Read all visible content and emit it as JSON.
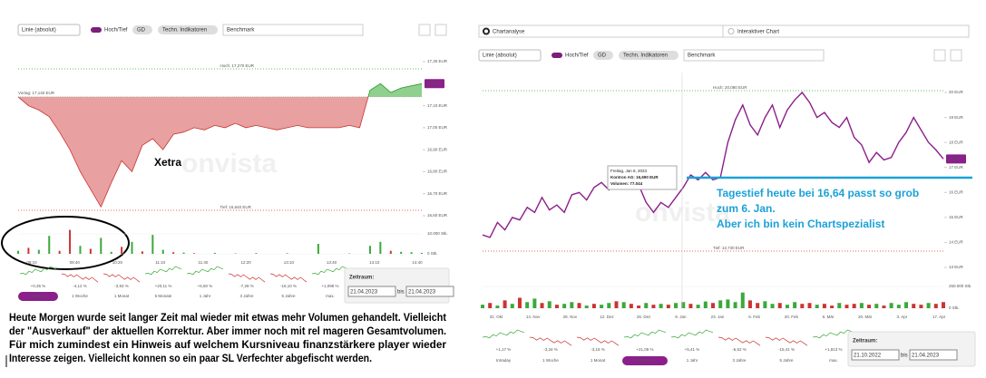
{
  "left": {
    "controls": {
      "line_type": "Linie (absolut)",
      "high_low": "Hoch/Tief",
      "gd": "GD",
      "indicators": "Techn. Indikatoren",
      "benchmark": "Benchmark"
    },
    "high_label": "Hoch: 17,270 EUR",
    "prev_label": "Vortag: 17,140 EUR",
    "low_label": "Tief: 16,640 EUR",
    "last_badge": "17,200",
    "exchange": "Xetra",
    "watermark": "onvista",
    "yticks": [
      {
        "value": 17.3,
        "label": "17,30 EUR"
      },
      {
        "value": 17.1,
        "label": "17,10 EUR"
      },
      {
        "value": 17.0,
        "label": "17,00 EUR"
      },
      {
        "value": 16.9,
        "label": "16,90 EUR"
      },
      {
        "value": 16.8,
        "label": "16,80 EUR"
      },
      {
        "value": 16.7,
        "label": "16,70 EUR"
      },
      {
        "value": 16.6,
        "label": "16,60 EUR"
      }
    ],
    "prices": [
      17.14,
      17.1,
      17.08,
      17.05,
      16.98,
      16.9,
      16.8,
      16.72,
      16.64,
      16.75,
      16.85,
      16.8,
      16.92,
      16.95,
      16.9,
      16.97,
      16.98,
      17.0,
      16.99,
      17.01,
      17.0,
      17.02,
      17.0,
      17.01,
      17.0,
      16.99,
      17.0,
      17.01,
      17.0,
      17.0,
      17.0,
      17.0,
      17.01,
      17.0,
      17.17,
      17.2,
      17.16,
      17.18,
      17.19,
      17.2
    ],
    "volumes": [
      1500,
      3000,
      2000,
      9000,
      1500,
      12000,
      4000,
      2500,
      8000,
      1000,
      3500,
      6000,
      1200,
      9500,
      2000,
      800,
      600,
      300,
      0,
      500,
      0,
      200,
      0,
      400,
      0,
      0,
      300,
      0,
      0,
      5000,
      0,
      0,
      200,
      0,
      4000,
      6000,
      1500,
      1000,
      800,
      500
    ],
    "volume_up": [
      true,
      false,
      true,
      true,
      false,
      false,
      true,
      false,
      true,
      true,
      false,
      true,
      false,
      true,
      true,
      false,
      true,
      false,
      true,
      true,
      false,
      true,
      false,
      true,
      false,
      true,
      true,
      false,
      true,
      true,
      false,
      true,
      true,
      false,
      true,
      true,
      false,
      true,
      true,
      true
    ],
    "volume_ticks": [
      {
        "value": 10000,
        "label": "10.000 Stk."
      },
      {
        "value": 0,
        "label": "0 Stk."
      }
    ],
    "xlabels": [
      "09:10",
      "09:40",
      "10:20",
      "11:10",
      "11:40",
      "12:20",
      "13:10",
      "13:40",
      "14:10",
      "14:40"
    ],
    "periods": [
      {
        "label": "Intraday",
        "change": "+0,35 %"
      },
      {
        "label": "1 Woche",
        "change": "-4,12 %"
      },
      {
        "label": "1 Monat",
        "change": "-3,93 %"
      },
      {
        "label": "6 Monate",
        "change": "+20,11 %"
      },
      {
        "label": "1 Jahr",
        "change": "+6,50 %"
      },
      {
        "label": "3 Jahre",
        "change": "-7,28 %"
      },
      {
        "label": "5 Jahre",
        "change": "-16,10 %"
      },
      {
        "label": "max.",
        "change": "+1,098 %"
      }
    ],
    "active_period": 0,
    "range_title": "Zeitraum:",
    "from": "21.04.2023",
    "between": "bis",
    "to": "21.04.2023"
  },
  "right": {
    "tabs": [
      "Chartanalyse",
      "Interaktiver Chart"
    ],
    "controls": {
      "line_type": "Linie (absolut)",
      "high_low": "Hoch/Tief",
      "gd": "GD",
      "indicators": "Techn. Indikatoren",
      "benchmark": "Benchmark"
    },
    "high_label": "Hoch: 20,080 EUR",
    "low_label": "Tief: 13,730 EUR",
    "last_badge": "17,340",
    "watermark": "onvista",
    "yticks": [
      {
        "value": 20,
        "label": "20 EUR"
      },
      {
        "value": 19,
        "label": "19 EUR"
      },
      {
        "value": 18,
        "label": "18 EUR"
      },
      {
        "value": 17,
        "label": "17 EUR"
      },
      {
        "value": 16,
        "label": "16 EUR"
      },
      {
        "value": 15,
        "label": "15 EUR"
      },
      {
        "value": 14,
        "label": "14 EUR"
      },
      {
        "value": 13,
        "label": "13 EUR"
      }
    ],
    "prices": [
      14.3,
      14.2,
      14.8,
      14.5,
      15.0,
      14.9,
      15.4,
      15.2,
      15.8,
      15.3,
      15.5,
      15.2,
      15.9,
      16.0,
      15.7,
      16.2,
      16.4,
      16.1,
      16.6,
      17.0,
      16.8,
      16.3,
      15.6,
      15.2,
      15.6,
      15.4,
      15.8,
      16.2,
      16.7,
      16.5,
      16.8,
      16.5,
      16.6,
      18.0,
      18.9,
      19.5,
      18.7,
      18.3,
      19.0,
      19.5,
      18.6,
      19.3,
      19.7,
      20.0,
      19.6,
      19.0,
      19.2,
      18.8,
      18.6,
      19.0,
      18.2,
      17.9,
      17.2,
      17.6,
      17.3,
      17.4,
      18.0,
      18.4,
      19.0,
      18.5,
      18.0,
      17.7,
      17.34
    ],
    "volumes": [
      40000,
      60000,
      30000,
      90000,
      50000,
      120000,
      70000,
      110000,
      60000,
      80000,
      40000,
      50000,
      70000,
      60000,
      30000,
      50000,
      40000,
      60000,
      80000,
      70000,
      50000,
      30000,
      60000,
      40000,
      50000,
      40000,
      60000,
      70000,
      50000,
      40000,
      77044,
      60000,
      90000,
      100000,
      70000,
      180000,
      90000,
      60000,
      80000,
      50000,
      60000,
      40000,
      70000,
      50000,
      60000,
      40000,
      50000,
      30000,
      60000,
      40000,
      50000,
      60000,
      40000,
      50000,
      30000,
      60000,
      40000,
      70000,
      50000,
      40000,
      60000,
      50000,
      70000
    ],
    "volume_up": [
      true,
      false,
      true,
      false,
      true,
      false,
      true,
      true,
      false,
      true,
      false,
      true,
      true,
      false,
      true,
      false,
      true,
      true,
      false,
      true,
      false,
      false,
      true,
      false,
      true,
      false,
      true,
      true,
      false,
      true,
      true,
      false,
      true,
      true,
      true,
      true,
      false,
      false,
      true,
      true,
      false,
      true,
      true,
      false,
      false,
      true,
      false,
      false,
      true,
      false,
      false,
      true,
      false,
      true,
      false,
      true,
      true,
      true,
      false,
      false,
      true,
      false,
      false
    ],
    "volume_ticks": [
      {
        "value": 250000,
        "label": "250.000 Stk."
      },
      {
        "value": 0,
        "label": "0 Stk."
      }
    ],
    "xlabels": [
      "31. Okt",
      "14. Nov",
      "28. Nov",
      "12. Dez",
      "26. Dez",
      "9. Jan",
      "23. Jan",
      "6. Feb",
      "20. Feb",
      "6. Mär",
      "20. Mär",
      "3. Apr",
      "17. Apr"
    ],
    "tooltip": [
      "Freitag, Jan 6, 2023",
      "Kontron AG: 16,690 EUR",
      "Volumen: 77.044"
    ],
    "annotation": [
      "Tagestief heute bei 16,64 passt so grob",
      "zum 6. Jan.",
      "Aber ich bin kein Chartspezialist"
    ],
    "periods": [
      {
        "label": "Intraday",
        "change": "+1,17 %"
      },
      {
        "label": "1 Woche",
        "change": "-3,34 %"
      },
      {
        "label": "1 Monat",
        "change": "-3,18 %"
      },
      {
        "label": "6 Monate",
        "change": "+21,09 %"
      },
      {
        "label": "1 Jahr",
        "change": "+5,41 %"
      },
      {
        "label": "3 Jahre",
        "change": "-6,52 %"
      },
      {
        "label": "5 Jahre",
        "change": "-15,41 %"
      },
      {
        "label": "max.",
        "change": "+1,813 %"
      }
    ],
    "active_period": 3,
    "range_title": "Zeitraum:",
    "from": "21.10.2022",
    "between": "bis",
    "to": "21.04.2023"
  },
  "comment": [
    "Heute Morgen wurde seit langer Zeit mal wieder mit etwas mehr Volumen gehandelt. Vielleicht",
    "der \"Ausverkauf\" der aktuellen Korrektur. Aber immer noch mit rel mageren Gesamtvolumen.",
    "Für mich zumindest ein Hinweis auf welchem Kursniveau finanzstärkere player wieder",
    "Interesse zeigen. Vielleicht konnen so ein paar SL Verfechter abgefischt werden."
  ]
}
